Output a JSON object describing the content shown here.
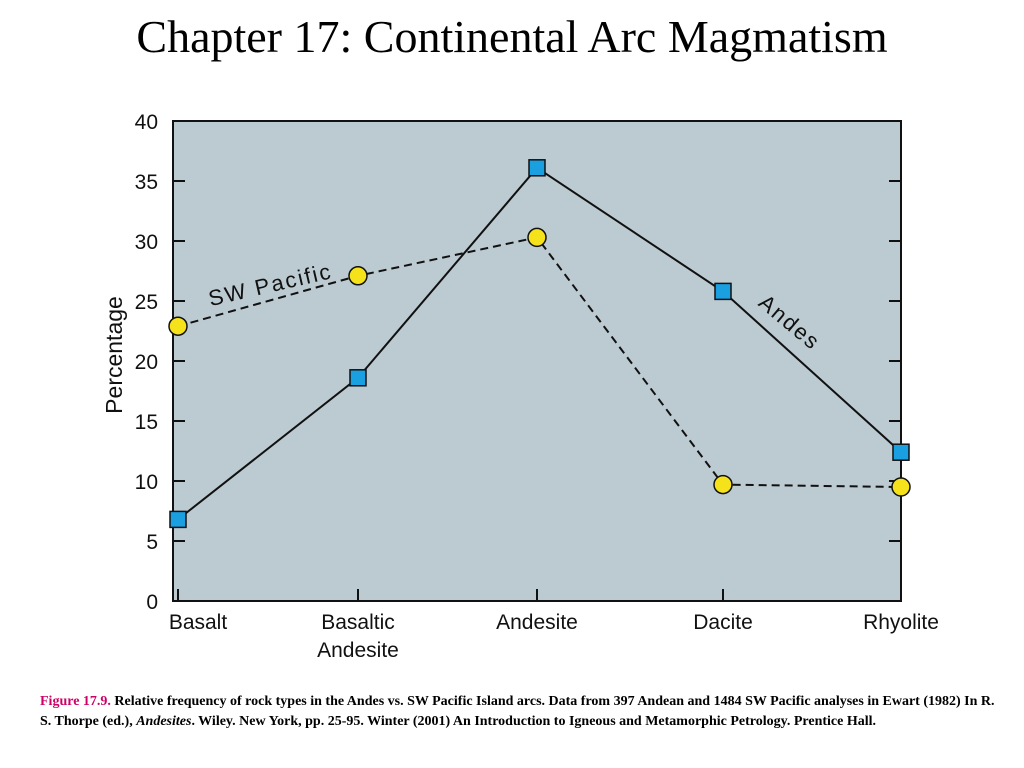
{
  "slide": {
    "title": "Chapter 17: Continental Arc Magmatism"
  },
  "caption": {
    "figure_label": "Figure 17.9.",
    "text_part1": "Relative frequency of rock types in the Andes vs. SW Pacific Island arcs. Data from 397 Andean and 1484 SW Pacific analyses in Ewart (1982) In R. S. Thorpe (ed.),",
    "italic_title": "Andesites",
    "text_part2": ". Wiley. New York, pp. 25-95.   Winter (2001) An Introduction to Igneous and Metamorphic Petrology. Prentice Hall."
  },
  "chart_data": {
    "type": "line",
    "ylabel": "Percentage",
    "xlabel": "",
    "ylim": [
      0,
      40
    ],
    "yticks": [
      0,
      5,
      10,
      15,
      20,
      25,
      30,
      35,
      40
    ],
    "categories": [
      [
        "Basalt"
      ],
      [
        "Basaltic",
        "Andesite"
      ],
      [
        "Andesite"
      ],
      [
        "Dacite"
      ],
      [
        "Rhyolite"
      ]
    ],
    "series": [
      {
        "name": "Andes",
        "values": [
          6.8,
          18.6,
          36.1,
          25.8,
          12.4
        ],
        "marker": "square",
        "line_style": "solid",
        "marker_color": "#1a9fe0"
      },
      {
        "name": "SW Pacific",
        "values": [
          22.9,
          27.1,
          30.3,
          9.7,
          9.5
        ],
        "marker": "circle",
        "line_style": "dashed",
        "marker_color": "#f5e21b"
      }
    ],
    "plot_background": "#bccbd2",
    "grid": false,
    "legend": "inline labels"
  }
}
